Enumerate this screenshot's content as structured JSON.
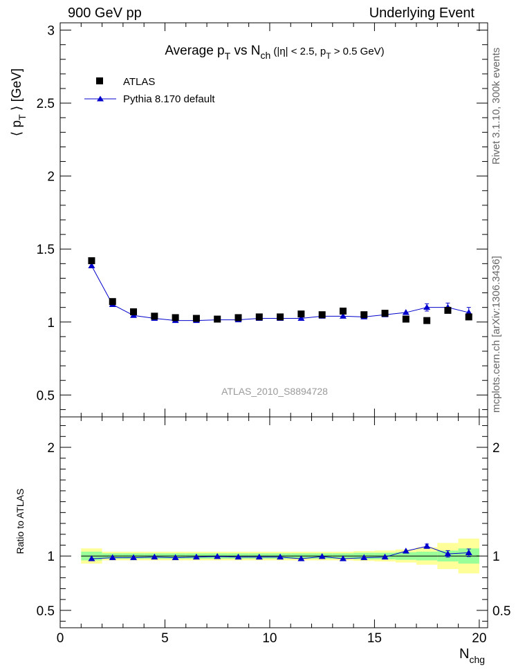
{
  "header": {
    "left": "900 GeV pp",
    "right": "Underlying Event"
  },
  "side_labels": {
    "rivet": "Rivet 3.1.10,  300k events",
    "mcplots": "mcplots.cern.ch [arXiv:1306.3436]"
  },
  "colors": {
    "atlas": "#000000",
    "pythia": "#0000cc",
    "band_inner": "#99ff99",
    "band_outer": "#ffff99",
    "watermark": "#999999"
  },
  "chart_data": [
    {
      "type": "scatter",
      "title": "Average p_T vs N_ch (|η| < 2.5, p_T > 0.5 GeV)",
      "title_parts": {
        "main1": "Average p",
        "sub1": "T",
        "main2": " vs N",
        "sub2": "ch",
        "rest1": " (|η| < 2.5, p",
        "sub3": "T",
        "rest2": " > 0.5 GeV)"
      },
      "ylabel": "⟨ p_T ⟩ [GeV]",
      "ylabel_parts": {
        "open": "⟨ p",
        "sub": "T",
        "close": " ⟩ [GeV]"
      },
      "watermark": "ATLAS_2010_S8894728",
      "xlim": [
        0,
        20.4
      ],
      "ylim": [
        0.35,
        3.05
      ],
      "yticks": [
        0.5,
        1,
        1.5,
        2,
        2.5,
        3
      ],
      "ytick_labels": [
        "0.5",
        "1",
        "1.5",
        "2",
        "2.5",
        "3"
      ],
      "legend": {
        "placement": "top-left",
        "entries": [
          "ATLAS",
          "Pythia 8.170 default"
        ]
      },
      "series": [
        {
          "name": "ATLAS",
          "marker": "square",
          "x": [
            1.5,
            2.5,
            3.5,
            4.5,
            5.5,
            6.5,
            7.5,
            8.5,
            9.5,
            10.5,
            11.5,
            12.5,
            13.5,
            14.5,
            15.5,
            16.5,
            17.5,
            18.5,
            19.5
          ],
          "y": [
            1.42,
            1.14,
            1.07,
            1.04,
            1.03,
            1.025,
            1.02,
            1.03,
            1.035,
            1.035,
            1.055,
            1.05,
            1.075,
            1.05,
            1.06,
            1.02,
            1.01,
            1.08,
            1.035
          ]
        },
        {
          "name": "Pythia 8.170 default",
          "marker": "triangle",
          "x": [
            1.5,
            2.5,
            3.5,
            4.5,
            5.5,
            6.5,
            7.5,
            8.5,
            9.5,
            10.5,
            11.5,
            12.5,
            13.5,
            14.5,
            15.5,
            16.5,
            17.5,
            18.5,
            19.5
          ],
          "y": [
            1.385,
            1.12,
            1.045,
            1.025,
            1.01,
            1.01,
            1.015,
            1.015,
            1.025,
            1.025,
            1.025,
            1.04,
            1.04,
            1.035,
            1.05,
            1.065,
            1.1,
            1.1,
            1.065
          ],
          "yerr": [
            0,
            0,
            0,
            0,
            0,
            0,
            0,
            0,
            0,
            0,
            0,
            0,
            0,
            0,
            0,
            0,
            0.025,
            0.03,
            0.035
          ]
        }
      ]
    },
    {
      "type": "line",
      "ylabel": "Ratio to ATLAS",
      "xlabel": "N_chg",
      "xlabel_parts": {
        "main": "N",
        "sub": "chg"
      },
      "xlim": [
        0,
        20.4
      ],
      "ylim": [
        0.34,
        2.28
      ],
      "xticks": [
        0,
        5,
        10,
        15,
        20
      ],
      "xtick_labels": [
        "0",
        "5",
        "10",
        "15",
        "20"
      ],
      "yticks": [
        0.5,
        1,
        2
      ],
      "ytick_labels": [
        "0.5",
        "1",
        "2"
      ],
      "bands": {
        "x_edges": [
          1,
          2,
          3,
          4,
          5,
          6,
          7,
          8,
          9,
          10,
          11,
          12,
          13,
          14,
          15,
          16,
          17,
          18,
          19,
          20
        ],
        "inner_halfwidth": [
          0.04,
          0.025,
          0.025,
          0.025,
          0.025,
          0.025,
          0.025,
          0.025,
          0.025,
          0.025,
          0.025,
          0.025,
          0.025,
          0.03,
          0.03,
          0.035,
          0.04,
          0.05,
          0.07
        ],
        "outer_halfwidth": [
          0.07,
          0.04,
          0.04,
          0.04,
          0.04,
          0.04,
          0.04,
          0.04,
          0.04,
          0.04,
          0.04,
          0.04,
          0.04,
          0.045,
          0.05,
          0.06,
          0.08,
          0.12,
          0.16
        ]
      },
      "series": [
        {
          "name": "Pythia 8.170 default",
          "x": [
            1.5,
            2.5,
            3.5,
            4.5,
            5.5,
            6.5,
            7.5,
            8.5,
            9.5,
            10.5,
            11.5,
            12.5,
            13.5,
            14.5,
            15.5,
            16.5,
            17.5,
            18.5,
            19.5
          ],
          "y": [
            0.975,
            0.985,
            0.985,
            0.99,
            0.985,
            0.99,
            0.995,
            0.99,
            0.99,
            0.99,
            0.975,
            0.995,
            0.975,
            0.985,
            0.99,
            1.045,
            1.09,
            1.02,
            1.03
          ],
          "yerr": [
            0,
            0,
            0,
            0,
            0,
            0,
            0,
            0,
            0,
            0,
            0,
            0,
            0,
            0,
            0,
            0,
            0.02,
            0.03,
            0.035
          ]
        }
      ]
    }
  ]
}
